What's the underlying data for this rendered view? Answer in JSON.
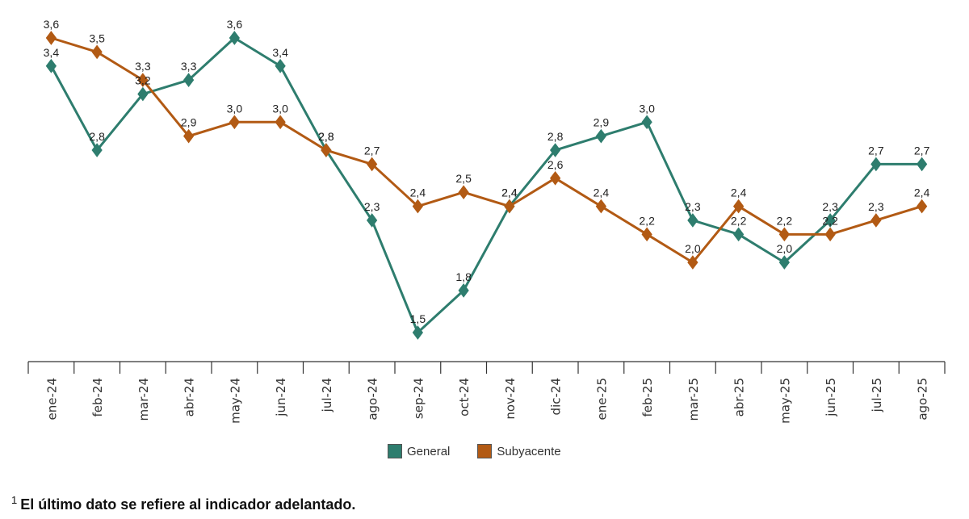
{
  "chart_data": {
    "type": "line",
    "categories": [
      "ene-24",
      "feb-24",
      "mar-24",
      "abr-24",
      "may-24",
      "jun-24",
      "jul-24",
      "ago-24",
      "sep-24",
      "oct-24",
      "nov-24",
      "dic-24",
      "ene-25",
      "feb-25",
      "mar-25",
      "abr-25",
      "may-25",
      "jun-25",
      "jul-25",
      "ago-25"
    ],
    "series": [
      {
        "name": "General",
        "color": "#2e7d6e",
        "values": [
          3.4,
          2.8,
          3.2,
          3.3,
          3.6,
          3.4,
          2.8,
          2.3,
          1.5,
          1.8,
          2.4,
          2.8,
          2.9,
          3.0,
          2.3,
          2.2,
          2.0,
          2.3,
          2.7,
          2.7
        ]
      },
      {
        "name": "Subyacente",
        "color": "#b25a14",
        "values": [
          3.6,
          3.5,
          3.3,
          2.9,
          3.0,
          3.0,
          2.8,
          2.7,
          2.4,
          2.5,
          2.4,
          2.6,
          2.4,
          2.2,
          2.0,
          2.4,
          2.2,
          2.2,
          2.3,
          2.4
        ]
      }
    ],
    "ylim": [
      1.3,
      3.8
    ],
    "grid": false,
    "legend_position": "bottom-center"
  },
  "legend": {
    "general": "General",
    "subyacente": "Subyacente"
  },
  "footnote": {
    "marker": "1",
    "text": "El último dato se refiere al indicador adelantado."
  }
}
